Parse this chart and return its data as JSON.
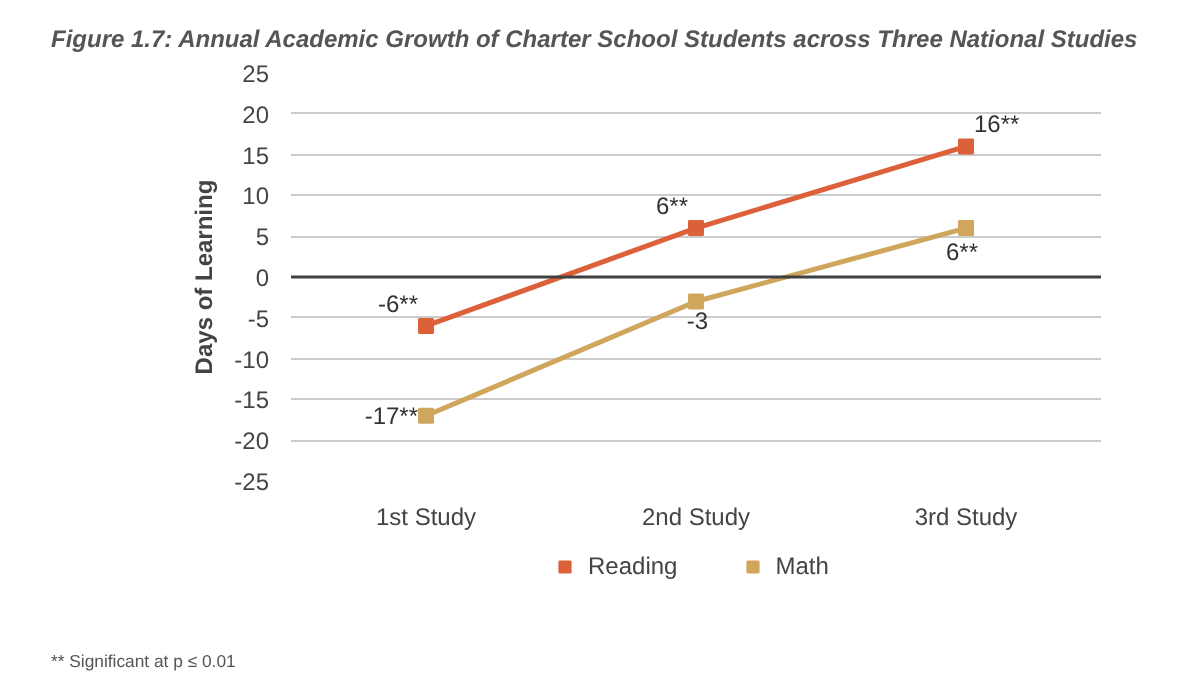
{
  "chart_data": {
    "type": "line",
    "title": "Figure 1.7: Annual Academic Growth of Charter School Students across Three National Studies",
    "ylabel": "Days of Learning",
    "categories": [
      "1st Study",
      "2nd Study",
      "3rd Study"
    ],
    "series": [
      {
        "name": "Reading",
        "color": "#dc603a",
        "values": [
          -6,
          6,
          16
        ],
        "value_labels": [
          "-6**",
          "6**",
          "16**"
        ]
      },
      {
        "name": "Math",
        "color": "#cfa65c",
        "values": [
          -17,
          -3,
          6
        ],
        "value_labels": [
          "-17**",
          "-3",
          "6**"
        ]
      }
    ],
    "ylim": [
      -25,
      25
    ],
    "yticks": [
      -25,
      -20,
      -15,
      -10,
      -5,
      0,
      5,
      10,
      15,
      20,
      25
    ],
    "grid": "y",
    "legend": "bottom",
    "marker": "square",
    "line_style": "solid",
    "ref_lines": [
      {
        "axis": "y",
        "value": 0,
        "color": "#404040"
      }
    ],
    "annotations": [
      "** Significant at p ≤ 0.01"
    ]
  }
}
